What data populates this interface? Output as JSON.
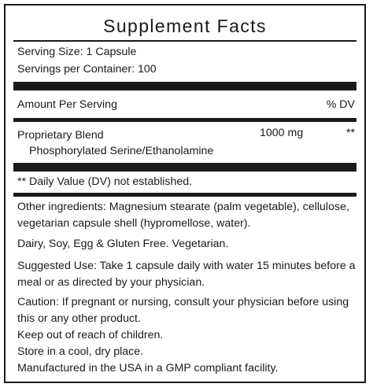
{
  "title": "Supplement Facts",
  "serving_size": "Serving Size: 1 Capsule",
  "servings_per_container": "Servings per Container: 100",
  "header": {
    "amount_per_serving": "Amount Per Serving",
    "dv": "% DV"
  },
  "ingredients": [
    {
      "name": "Proprietary Blend",
      "amount": "1000 mg",
      "dv": "**",
      "sub": "Phosphorylated Serine/Ethanolamine"
    }
  ],
  "dv_note": "** Daily Value (DV) not established.",
  "notes": [
    "Other ingredients: Magnesium stearate (palm vegetable), cellulose, vegetarian capsule shell (hypromellose, water).",
    "Dairy, Soy, Egg & Gluten Free. Vegetarian.",
    "Suggested Use: Take 1 capsule daily with water 15 minutes before a meal or as directed by your physician.",
    "Caution: If pregnant or nursing, consult your physician before using this or any other product.",
    "Keep out of reach of children.",
    "Store in a cool, dry place.",
    "Manufactured in the USA in a GMP compliant facility."
  ]
}
